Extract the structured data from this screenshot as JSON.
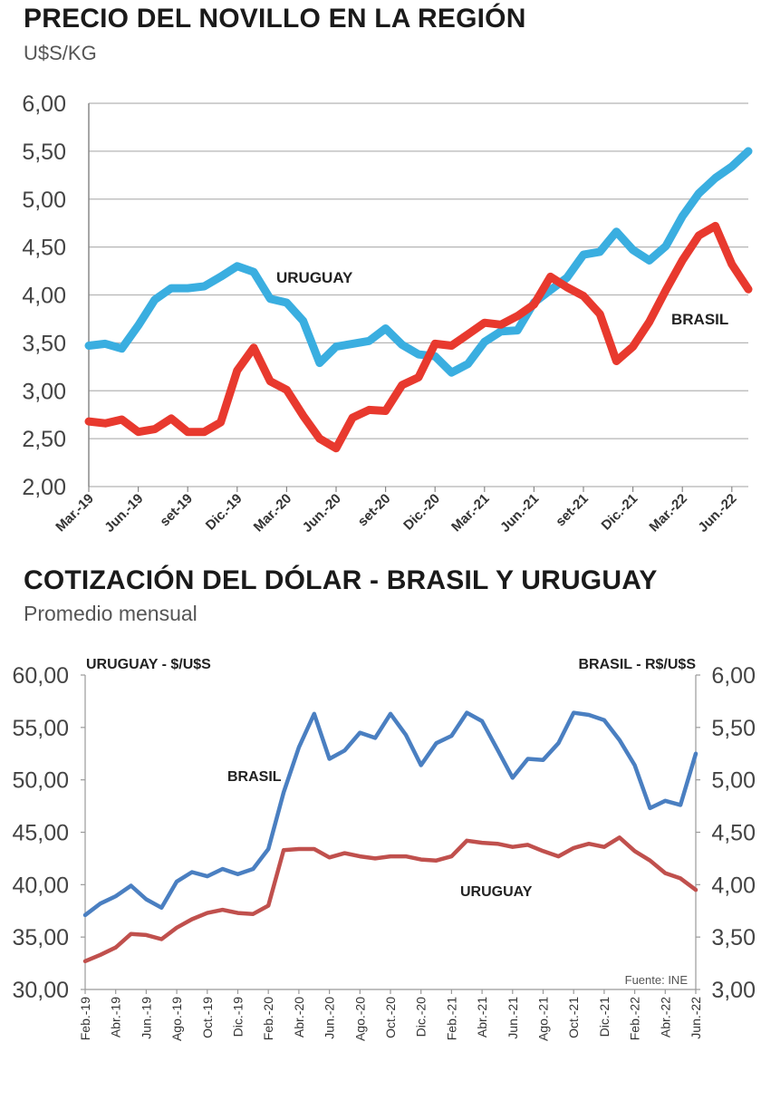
{
  "chart_data": [
    {
      "type": "line",
      "title": "PRECIO DEL NOVILLO EN LA REGIÓN",
      "subtitle": "U$S/KG",
      "ylim": [
        2.0,
        6.0
      ],
      "yticks": [
        "2,00",
        "2,50",
        "3,00",
        "3,50",
        "4,00",
        "4,50",
        "5,00",
        "5,50",
        "6,00"
      ],
      "xticks": [
        "Mar.-19",
        "Jun.-19",
        "set-19",
        "Dic.-19",
        "Mar.-20",
        "Jun.-20",
        "set-20",
        "Dic.-20",
        "Mar.-21",
        "Jun.-21",
        "set-21",
        "Dic.-21",
        "Mar.-22",
        "Jun.-22"
      ],
      "grid": true,
      "series": [
        {
          "name": "URUGUAY",
          "color": "#3aaee0",
          "values": [
            3.47,
            3.49,
            3.44,
            3.68,
            3.95,
            4.07,
            4.07,
            4.09,
            4.19,
            4.3,
            4.24,
            3.96,
            3.92,
            3.73,
            3.29,
            3.46,
            3.49,
            3.52,
            3.65,
            3.48,
            3.38,
            3.36,
            3.19,
            3.28,
            3.51,
            3.62,
            3.63,
            3.92,
            4.05,
            4.18,
            4.42,
            4.45,
            4.66,
            4.47,
            4.36,
            4.51,
            4.82,
            5.06,
            5.22,
            5.34,
            5.5
          ]
        },
        {
          "name": "BRASIL",
          "color": "#e8392e",
          "values": [
            2.68,
            2.66,
            2.7,
            2.57,
            2.6,
            2.71,
            2.57,
            2.57,
            2.67,
            3.21,
            3.45,
            3.1,
            3.01,
            2.74,
            2.5,
            2.4,
            2.72,
            2.8,
            2.79,
            3.06,
            3.14,
            3.49,
            3.47,
            3.59,
            3.71,
            3.69,
            3.78,
            3.9,
            4.19,
            4.08,
            3.99,
            3.8,
            3.31,
            3.46,
            3.72,
            4.05,
            4.36,
            4.62,
            4.72,
            4.32,
            4.06
          ]
        }
      ],
      "annotations": [
        "URUGUAY",
        "BRASIL"
      ]
    },
    {
      "type": "line",
      "title": "COTIZACIÓN DEL DÓLAR - BRASIL Y URUGUAY",
      "subtitle": "Promedio mensual",
      "ylabel": "URUGUAY - $/U$S",
      "ylabel_right": "BRASIL - R$/U$S",
      "ylim": [
        30.0,
        60.0
      ],
      "ylim_right": [
        3.0,
        6.0
      ],
      "yticks": [
        "30,00",
        "35,00",
        "40,00",
        "45,00",
        "50,00",
        "55,00",
        "60,00"
      ],
      "yticks_right": [
        "3,00",
        "3,50",
        "4,00",
        "4,50",
        "5,00",
        "5,50",
        "6,00"
      ],
      "xticks": [
        "Feb.-19",
        "Abr.-19",
        "Jun.-19",
        "Ago.-19",
        "Oct.-19",
        "Dic.-19",
        "Feb.-20",
        "Abr.-20",
        "Jun.-20",
        "Ago.-20",
        "Oct.-20",
        "Dic.-20",
        "Feb.-21",
        "Abr.-21",
        "Jun.-21",
        "Ago.-21",
        "Oct.-21",
        "Dic.-21",
        "Feb.-22",
        "Abr.-22",
        "Jun.-22"
      ],
      "grid": false,
      "source": "Fuente: INE",
      "series": [
        {
          "name": "BRASIL",
          "color": "#4a7fc1",
          "axis": "right",
          "values": [
            3.71,
            3.82,
            3.89,
            3.99,
            3.86,
            3.78,
            4.03,
            4.12,
            4.08,
            4.15,
            4.1,
            4.15,
            4.34,
            4.88,
            5.31,
            5.63,
            5.2,
            5.28,
            5.45,
            5.4,
            5.63,
            5.43,
            5.14,
            5.35,
            5.42,
            5.64,
            5.56,
            5.29,
            5.02,
            5.2,
            5.19,
            5.35,
            5.64,
            5.62,
            5.57,
            5.38,
            5.14,
            4.73,
            4.8,
            4.76,
            5.25
          ]
        },
        {
          "name": "URUGUAY",
          "color": "#c0504d",
          "axis": "left",
          "values": [
            32.7,
            33.3,
            34.0,
            35.3,
            35.2,
            34.8,
            35.9,
            36.7,
            37.3,
            37.6,
            37.3,
            37.2,
            38.0,
            43.3,
            43.4,
            43.4,
            42.6,
            43.0,
            42.7,
            42.5,
            42.7,
            42.7,
            42.4,
            42.3,
            42.7,
            44.2,
            44.0,
            43.9,
            43.6,
            43.8,
            43.2,
            42.7,
            43.5,
            43.9,
            43.6,
            44.5,
            43.2,
            42.3,
            41.1,
            40.6,
            39.5
          ]
        }
      ],
      "annotations": [
        "BRASIL",
        "URUGUAY"
      ]
    }
  ]
}
